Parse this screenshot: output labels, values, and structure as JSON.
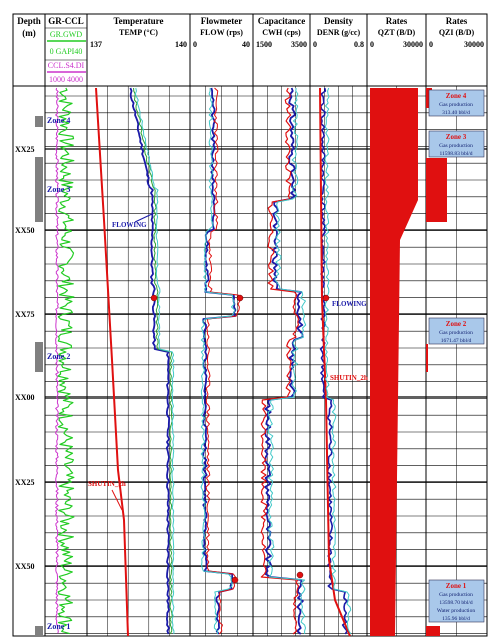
{
  "depth_track": {
    "title_line1": "Depth",
    "title_line2": "(m)",
    "labels": [
      "XX25",
      "XX50",
      "XX75",
      "XX00",
      "XX25",
      "XX50"
    ],
    "zone_markers": [
      "Zone 4",
      "Zone 3",
      "Zone 2",
      "Zone 1"
    ]
  },
  "tracks": [
    {
      "title": "GR-CCL",
      "subs": [
        "GR.GWD",
        "0   GAPI40",
        "CCL.S4.DI",
        "1000  4000"
      ]
    },
    {
      "title": "Temperature",
      "sub": "TEMP (°C)",
      "min": "137",
      "max": "140"
    },
    {
      "title": "Flowmeter",
      "sub": "FLOW (rps)",
      "min": "0",
      "max": "40"
    },
    {
      "title": "Capacitance",
      "sub": "CWH (cps)",
      "min": "1500",
      "max": "3500"
    },
    {
      "title": "Density",
      "sub": "DENR (g/cc)",
      "min": "0",
      "max": "0.8"
    },
    {
      "title": "Rates",
      "sub": "QZT (B/D)",
      "min": "0",
      "max": "30000"
    },
    {
      "title": "Rates",
      "sub": "QZI (B/D)",
      "min": "0",
      "max": "30000"
    }
  ],
  "annotations": {
    "flowing_temp": "FLOWING",
    "flowing_density": "FLOWING",
    "shutin_temp": "SHUTIN_2h",
    "shutin_density": "SHUTIN_2h"
  },
  "zone_boxes": [
    {
      "zone": "Zone 4",
      "lines": [
        "Gas production",
        "313.40 bbl/d"
      ]
    },
    {
      "zone": "Zone 3",
      "lines": [
        "Gas production",
        "11598.83 bbl/d"
      ]
    },
    {
      "zone": "Zone 2",
      "lines": [
        "Gas production",
        "1671.47 bbl/d"
      ]
    },
    {
      "zone": "Zone 1",
      "lines": [
        "Gas production",
        "13598.70 bbl/d",
        "Water production",
        "135.96 bbl/d"
      ]
    }
  ],
  "colors": {
    "grid": "#000000",
    "gr": "#22cc22",
    "ccl": "#cc33cc",
    "blue": "#1a1aa8",
    "red": "#e01010",
    "cyan": "#40c8c8",
    "green": "#30a030",
    "box": "#a9c8ea"
  },
  "chart_data": {
    "type": "line",
    "depth_ticks": [
      "XX25",
      "XX50",
      "XX75",
      "XX00",
      "XX25",
      "XX50"
    ],
    "zones": [
      {
        "name": "Zone 4",
        "gas_production_bbl_d": 313.4
      },
      {
        "name": "Zone 3",
        "gas_production_bbl_d": 11598.83
      },
      {
        "name": "Zone 2",
        "gas_production_bbl_d": 1671.47
      },
      {
        "name": "Zone 1",
        "gas_production_bbl_d": 13598.7,
        "water_production_bbl_d": 135.96
      }
    ],
    "axes": {
      "GR": [
        0,
        40
      ],
      "CCL": [
        1000,
        4000
      ],
      "TEMP": [
        137,
        140
      ],
      "FLOW": [
        0,
        40
      ],
      "CWH": [
        1500,
        3500
      ],
      "DENR": [
        0,
        0.8
      ],
      "QZT": [
        0,
        30000
      ],
      "QZI": [
        0,
        30000
      ]
    },
    "grid": true
  }
}
